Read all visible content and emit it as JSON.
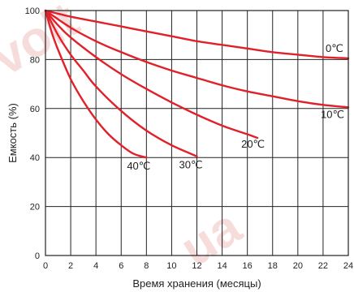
{
  "chart_data": {
    "type": "line",
    "xlabel": "Время хранения (месяцы)",
    "ylabel": "Емкость (%)",
    "xlim": [
      0,
      24
    ],
    "ylim": [
      0,
      100
    ],
    "xticks": [
      0,
      2,
      4,
      6,
      8,
      10,
      12,
      14,
      16,
      18,
      20,
      22,
      24
    ],
    "yticks": [
      0,
      20,
      40,
      60,
      80,
      100
    ],
    "grid": true,
    "line_color": "#e0212a",
    "accent_color": "#e0212a",
    "series": [
      {
        "name": "0℃",
        "x": [
          0,
          2,
          4,
          6,
          8,
          10,
          12,
          14,
          16,
          18,
          20,
          22,
          24
        ],
        "y": [
          100,
          97.5,
          95.5,
          93.5,
          91.5,
          89.5,
          87.5,
          86,
          84.5,
          83,
          82,
          81,
          80.5
        ]
      },
      {
        "name": "10℃",
        "x": [
          0,
          2,
          4,
          6,
          8,
          10,
          12,
          14,
          16,
          18,
          20,
          22,
          24
        ],
        "y": [
          100,
          93,
          87.5,
          83,
          79,
          75.5,
          72.5,
          69.5,
          67,
          65,
          63,
          61.5,
          60.5
        ]
      },
      {
        "name": "20℃",
        "x": [
          0,
          1,
          2,
          4,
          6,
          8,
          10,
          12,
          14,
          16,
          16.8
        ],
        "y": [
          100,
          94,
          89,
          81,
          74,
          68,
          62.5,
          57.5,
          53,
          49.5,
          48
        ]
      },
      {
        "name": "30℃",
        "x": [
          0,
          1,
          2,
          3,
          4,
          6,
          8,
          10,
          12
        ],
        "y": [
          100,
          90,
          82,
          75.5,
          69,
          59,
          51,
          45,
          40.5
        ]
      },
      {
        "name": "40℃",
        "x": [
          0,
          0.5,
          1,
          2,
          3,
          4,
          5,
          6,
          7,
          8
        ],
        "y": [
          100,
          91,
          84,
          72,
          63,
          55.5,
          49.5,
          45,
          41.5,
          40
        ]
      }
    ]
  }
}
